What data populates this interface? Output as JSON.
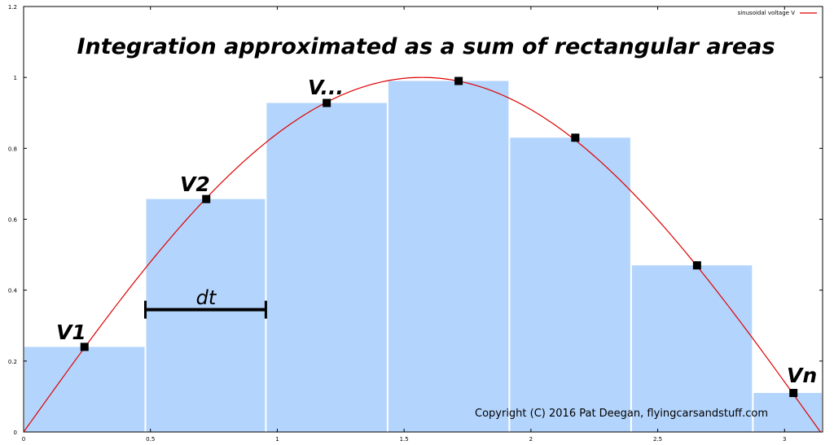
{
  "chart_data": {
    "type": "bar",
    "title": "Integration approximated as a sum of rectangular areas",
    "xlim": [
      0,
      3.15
    ],
    "ylim": [
      0,
      1.2
    ],
    "x_ticks": [
      "0",
      "0.5",
      "1",
      "1.5",
      "2",
      "2.5",
      "3"
    ],
    "y_ticks": [
      "0",
      "0.2",
      "0.4",
      "0.6",
      "0.8",
      "1",
      "1.2"
    ],
    "legend": {
      "position": "top-right",
      "label": "sinusoidal voltage V",
      "color": "#e00000"
    },
    "bar_color": "#b3d4fc",
    "rectangles": [
      {
        "x0": 0.0,
        "x1": 0.48,
        "value": 0.24
      },
      {
        "x0": 0.48,
        "x1": 0.955,
        "value": 0.657
      },
      {
        "x0": 0.955,
        "x1": 1.435,
        "value": 0.928
      },
      {
        "x0": 1.435,
        "x1": 1.915,
        "value": 0.99
      },
      {
        "x0": 1.915,
        "x1": 2.395,
        "value": 0.83
      },
      {
        "x0": 2.395,
        "x1": 2.875,
        "value": 0.47
      },
      {
        "x0": 2.875,
        "x1": 3.15,
        "value": 0.11
      }
    ],
    "sample_points": [
      {
        "x": 0.24,
        "y": 0.24
      },
      {
        "x": 0.72,
        "y": 0.657
      },
      {
        "x": 1.195,
        "y": 0.928
      },
      {
        "x": 1.715,
        "y": 0.99
      },
      {
        "x": 2.175,
        "y": 0.83
      },
      {
        "x": 2.655,
        "y": 0.47
      },
      {
        "x": 3.035,
        "y": 0.11
      }
    ],
    "curve": {
      "function": "sin(x)",
      "x_range": [
        0,
        3.14159
      ]
    },
    "annotations": {
      "v1": "V1",
      "v2": "V2",
      "vdots": "V...",
      "vn": "Vn",
      "dt": "dt",
      "dt_span": [
        0.48,
        0.955
      ],
      "dt_y": 0.345,
      "copyright": "Copyright (C) 2016 Pat Deegan, flyingcarsandstuff.com"
    }
  }
}
